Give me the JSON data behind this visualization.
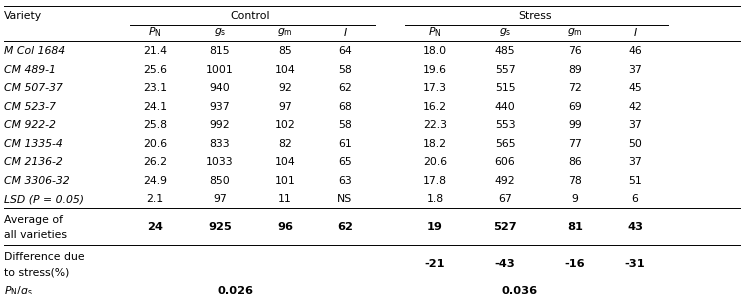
{
  "varieties": [
    "M Col 1684",
    "CM 489-1",
    "CM 507-37",
    "CM 523-7",
    "CM 922-2",
    "CM 1335-4",
    "CM 2136-2",
    "CM 3306-32",
    "LSD (P = 0.05)"
  ],
  "control_data": [
    [
      "21.4",
      "815",
      "85",
      "64"
    ],
    [
      "25.6",
      "1001",
      "104",
      "58"
    ],
    [
      "23.1",
      "940",
      "92",
      "62"
    ],
    [
      "24.1",
      "937",
      "97",
      "68"
    ],
    [
      "25.8",
      "992",
      "102",
      "58"
    ],
    [
      "20.6",
      "833",
      "82",
      "61"
    ],
    [
      "26.2",
      "1033",
      "104",
      "65"
    ],
    [
      "24.9",
      "850",
      "101",
      "63"
    ],
    [
      "2.1",
      "97",
      "11",
      "NS"
    ]
  ],
  "stress_data": [
    [
      "18.0",
      "485",
      "76",
      "46"
    ],
    [
      "19.6",
      "557",
      "89",
      "37"
    ],
    [
      "17.3",
      "515",
      "72",
      "45"
    ],
    [
      "16.2",
      "440",
      "69",
      "42"
    ],
    [
      "22.3",
      "553",
      "99",
      "37"
    ],
    [
      "18.2",
      "565",
      "77",
      "50"
    ],
    [
      "20.6",
      "606",
      "86",
      "37"
    ],
    [
      "17.8",
      "492",
      "78",
      "51"
    ],
    [
      "1.8",
      "67",
      "9",
      "6"
    ]
  ],
  "avg_control": [
    "24",
    "925",
    "96",
    "62"
  ],
  "avg_stress": [
    "19",
    "527",
    "81",
    "43"
  ],
  "diff_stress": [
    "-21",
    "-43",
    "-16",
    "-31"
  ],
  "ratio_control": "0.026",
  "ratio_stress": "0.036",
  "bg_color": "#ffffff",
  "text_color": "#000000",
  "font_size": 7.8,
  "bold_font_size": 8.2
}
